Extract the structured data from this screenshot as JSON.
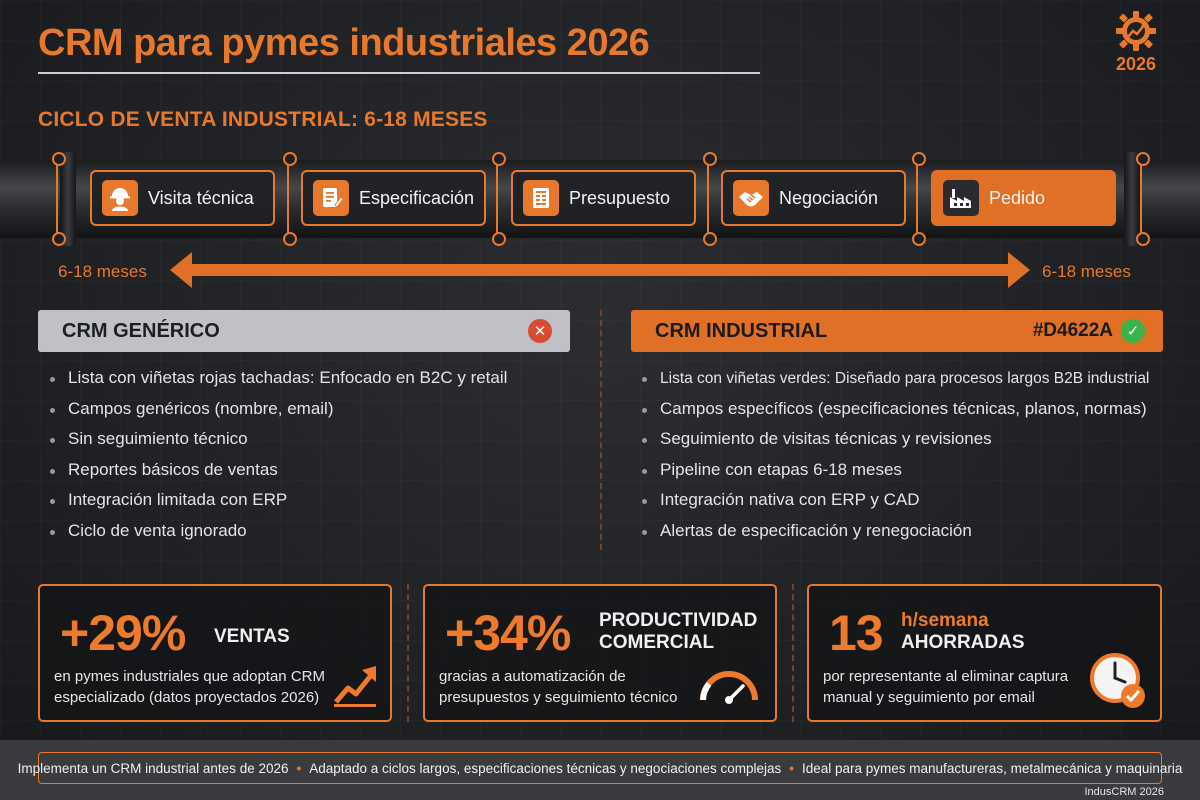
{
  "header": {
    "title": "CRM para pymes industriales 2026",
    "logo_icon": "gear-growth-icon",
    "logo_year": "2026"
  },
  "cycle": {
    "title": "CICLO DE VENTA INDUSTRIAL: 6-18 MESES",
    "stages": [
      {
        "label": "Visita técnica",
        "icon": "worker-helmet-icon"
      },
      {
        "label": "Especificación",
        "icon": "spec-document-icon"
      },
      {
        "label": "Presupuesto",
        "icon": "budget-document-icon"
      },
      {
        "label": "Negociación",
        "icon": "handshake-icon"
      },
      {
        "label": "Pedido",
        "icon": "factory-icon",
        "active": true
      }
    ],
    "duration_left": "6-18 meses",
    "duration_right": "6-18 meses"
  },
  "comparison": {
    "generic": {
      "heading": "CRM GENÉRICO",
      "badge_icon": "x-circle-icon",
      "items": [
        "Lista con viñetas rojas tachadas: Enfocado en B2C y retail",
        "Campos genéricos (nombre, email)",
        "Sin seguimiento técnico",
        "Reportes básicos de ventas",
        "Integración limitada con ERP",
        "Ciclo de venta ignorado"
      ]
    },
    "industrial": {
      "heading": "CRM INDUSTRIAL",
      "code": "#D4622A",
      "badge_icon": "check-circle-icon",
      "items": [
        "Lista con viñetas verdes: Diseñado para procesos largos B2B industrial",
        "Campos específicos (especificaciones técnicas, planos, normas)",
        "Seguimiento de visitas técnicas y revisiones",
        "Pipeline con etapas 6-18 meses",
        "Integración nativa con ERP y CAD",
        "Alertas de especificación y renegociación"
      ]
    }
  },
  "stats": [
    {
      "value": "+29%",
      "label_line1": "VENTAS",
      "label_line2": "",
      "desc_line1": "en pymes industriales que adoptan CRM",
      "desc_line2": "especializado (datos proyectados 2026)",
      "icon": "growth-chart-icon"
    },
    {
      "value": "+34%",
      "label_line1": "PRODUCTIVIDAD",
      "label_line2": "COMERCIAL",
      "desc_line1": "gracias a automatización de",
      "desc_line2": "presupuestos y seguimiento técnico",
      "icon": "speedometer-icon"
    },
    {
      "value": "13",
      "label_line1": "h/semana",
      "label_line2": "AHORRADAS",
      "desc_line1": "por representante al eliminar captura",
      "desc_line2": "manual y seguimiento por email",
      "icon": "clock-check-icon"
    }
  ],
  "footer": {
    "items": [
      "Implementa un CRM industrial antes de 2026",
      "Adaptado a ciclos largos, especificaciones técnicas y negociaciones complejas",
      "Ideal para pymes manufactureras, metalmecánica y maquinaria"
    ],
    "brand": "IndusCRM 2026"
  },
  "colors": {
    "accent": "#E8792C",
    "background": "#1F2124",
    "generic_header": "#BFC1C4",
    "success": "#39B34A",
    "error": "#D84A32"
  }
}
